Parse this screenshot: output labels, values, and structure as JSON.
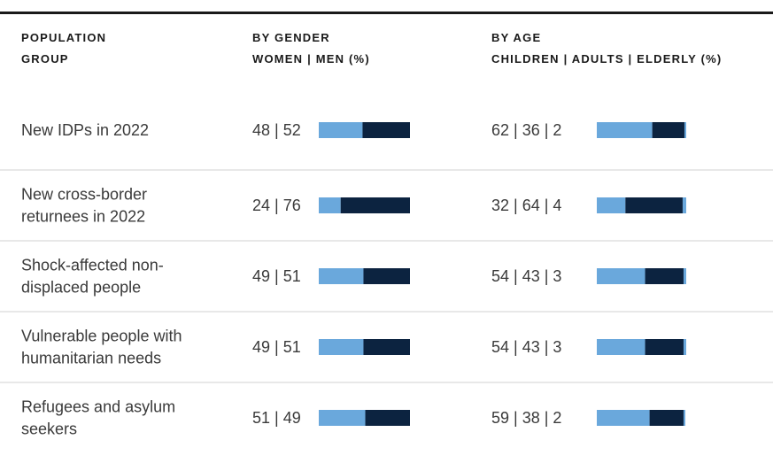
{
  "headers": [
    [
      "POPULATION",
      "GROUP"
    ],
    [
      "BY GENDER",
      "WOMEN | MEN (%)"
    ],
    [
      "BY AGE",
      "CHILDREN | ADULTS | ELDERLY (%)"
    ]
  ],
  "table": {
    "rows": [
      {
        "group": [
          "New IDPs in 2022"
        ],
        "gender": {
          "label": "48 | 52",
          "values": [
            48,
            52
          ]
        },
        "age": {
          "label": "62 | 36 | 2",
          "values": [
            62,
            36,
            2
          ]
        }
      },
      {
        "group": [
          "New cross-border",
          "returnees in 2022"
        ],
        "gender": {
          "label": "24 | 76",
          "values": [
            24,
            76
          ]
        },
        "age": {
          "label": "32 | 64 | 4",
          "values": [
            32,
            64,
            4
          ]
        }
      },
      {
        "group": [
          "Shock-affected non-",
          "displaced people"
        ],
        "gender": {
          "label": "49 | 51",
          "values": [
            49,
            51
          ]
        },
        "age": {
          "label": "54 | 43 | 3",
          "values": [
            54,
            43,
            3
          ]
        }
      },
      {
        "group": [
          "Vulnerable people with",
          "humanitarian needs"
        ],
        "gender": {
          "label": "49 | 51",
          "values": [
            49,
            51
          ]
        },
        "age": {
          "label": "54 | 43 | 3",
          "values": [
            54,
            43,
            3
          ]
        }
      },
      {
        "group": [
          "Refugees and asylum",
          "seekers"
        ],
        "gender": {
          "label": "51 | 49",
          "values": [
            51,
            49
          ]
        },
        "age": {
          "label": "59 | 38 | 2",
          "values": [
            59,
            38,
            2
          ]
        }
      }
    ]
  }
}
